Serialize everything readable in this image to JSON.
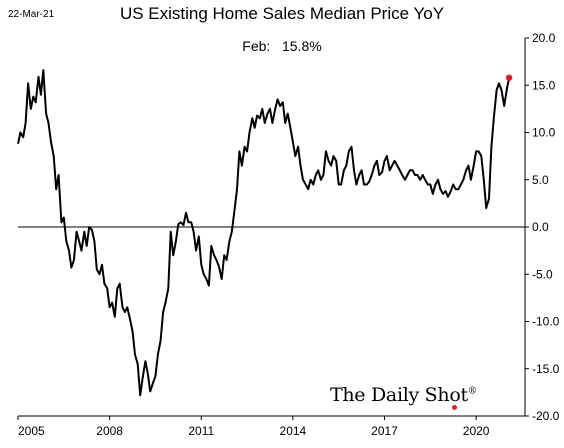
{
  "chart_data": {
    "type": "line",
    "date_stamp": "22-Mar-21",
    "title": "US Existing Home Sales Median Price YoY",
    "annotation": {
      "label": "Feb:",
      "value": "15.8%"
    },
    "watermark": "The Daily Shot",
    "watermark_mark": "®",
    "xlim": [
      2005.0,
      2021.6
    ],
    "ylim": [
      -20,
      20
    ],
    "x_ticks": [
      2005,
      2008,
      2011,
      2014,
      2017,
      2020
    ],
    "x_tick_labels": [
      "2005",
      "2008",
      "2011",
      "2014",
      "2017",
      "2020"
    ],
    "y_ticks": [
      20,
      15,
      10,
      5,
      0,
      -5,
      -10,
      -15,
      -20
    ],
    "y_tick_labels": [
      "20.0",
      "15.0",
      "10.0",
      "5.0",
      "0.0",
      "-5.0",
      "-10.0",
      "-15.0",
      "-20.0"
    ],
    "zero_line": 0,
    "grid": false,
    "colors": {
      "line": "#000000",
      "marker": "#e02020",
      "axis": "#000000"
    },
    "series": [
      {
        "values": [
          [
            2005.0,
            8.8
          ],
          [
            2005.08,
            10.0
          ],
          [
            2005.17,
            9.5
          ],
          [
            2005.25,
            11.0
          ],
          [
            2005.33,
            15.2
          ],
          [
            2005.42,
            12.5
          ],
          [
            2005.5,
            13.8
          ],
          [
            2005.58,
            13.2
          ],
          [
            2005.67,
            15.9
          ],
          [
            2005.75,
            14.0
          ],
          [
            2005.83,
            16.6
          ],
          [
            2005.92,
            12.0
          ],
          [
            2006.0,
            11.0
          ],
          [
            2006.08,
            9.0
          ],
          [
            2006.17,
            7.5
          ],
          [
            2006.25,
            4.0
          ],
          [
            2006.33,
            5.5
          ],
          [
            2006.42,
            0.5
          ],
          [
            2006.5,
            1.0
          ],
          [
            2006.58,
            -1.5
          ],
          [
            2006.67,
            -2.5
          ],
          [
            2006.75,
            -4.3
          ],
          [
            2006.83,
            -3.5
          ],
          [
            2006.92,
            -0.5
          ],
          [
            2007.0,
            -1.5
          ],
          [
            2007.08,
            -2.5
          ],
          [
            2007.17,
            -0.5
          ],
          [
            2007.25,
            -2.0
          ],
          [
            2007.33,
            0.0
          ],
          [
            2007.42,
            -0.3
          ],
          [
            2007.5,
            -1.5
          ],
          [
            2007.58,
            -4.5
          ],
          [
            2007.67,
            -5.0
          ],
          [
            2007.75,
            -4.0
          ],
          [
            2007.83,
            -6.0
          ],
          [
            2007.92,
            -6.5
          ],
          [
            2008.0,
            -8.5
          ],
          [
            2008.08,
            -8.0
          ],
          [
            2008.17,
            -9.5
          ],
          [
            2008.25,
            -6.5
          ],
          [
            2008.33,
            -6.0
          ],
          [
            2008.42,
            -8.5
          ],
          [
            2008.5,
            -9.0
          ],
          [
            2008.58,
            -8.5
          ],
          [
            2008.67,
            -9.8
          ],
          [
            2008.75,
            -11.0
          ],
          [
            2008.83,
            -13.5
          ],
          [
            2008.92,
            -14.5
          ],
          [
            2009.0,
            -17.8
          ],
          [
            2009.08,
            -16.0
          ],
          [
            2009.17,
            -14.2
          ],
          [
            2009.25,
            -15.5
          ],
          [
            2009.33,
            -17.4
          ],
          [
            2009.42,
            -16.5
          ],
          [
            2009.5,
            -15.8
          ],
          [
            2009.58,
            -13.5
          ],
          [
            2009.67,
            -12.0
          ],
          [
            2009.75,
            -9.0
          ],
          [
            2009.83,
            -8.0
          ],
          [
            2009.92,
            -6.5
          ],
          [
            2010.0,
            -0.5
          ],
          [
            2010.08,
            -3.0
          ],
          [
            2010.17,
            -1.5
          ],
          [
            2010.25,
            0.3
          ],
          [
            2010.33,
            0.5
          ],
          [
            2010.42,
            0.2
          ],
          [
            2010.5,
            1.5
          ],
          [
            2010.58,
            0.5
          ],
          [
            2010.67,
            0.5
          ],
          [
            2010.75,
            -0.5
          ],
          [
            2010.83,
            -2.5
          ],
          [
            2010.92,
            -1.0
          ],
          [
            2011.0,
            -4.0
          ],
          [
            2011.08,
            -5.0
          ],
          [
            2011.17,
            -5.5
          ],
          [
            2011.25,
            -6.2
          ],
          [
            2011.33,
            -2.0
          ],
          [
            2011.42,
            -3.0
          ],
          [
            2011.5,
            -3.5
          ],
          [
            2011.58,
            -4.2
          ],
          [
            2011.67,
            -5.5
          ],
          [
            2011.75,
            -3.0
          ],
          [
            2011.83,
            -3.5
          ],
          [
            2011.92,
            -1.5
          ],
          [
            2012.0,
            -0.5
          ],
          [
            2012.08,
            1.5
          ],
          [
            2012.17,
            4.0
          ],
          [
            2012.25,
            8.0
          ],
          [
            2012.33,
            6.5
          ],
          [
            2012.42,
            8.5
          ],
          [
            2012.5,
            8.0
          ],
          [
            2012.58,
            10.0
          ],
          [
            2012.67,
            11.5
          ],
          [
            2012.75,
            10.5
          ],
          [
            2012.83,
            11.8
          ],
          [
            2012.92,
            11.5
          ],
          [
            2013.0,
            12.5
          ],
          [
            2013.08,
            11.0
          ],
          [
            2013.17,
            12.0
          ],
          [
            2013.25,
            12.5
          ],
          [
            2013.33,
            11.0
          ],
          [
            2013.42,
            12.5
          ],
          [
            2013.5,
            13.5
          ],
          [
            2013.58,
            12.8
          ],
          [
            2013.67,
            13.2
          ],
          [
            2013.75,
            11.0
          ],
          [
            2013.83,
            12.0
          ],
          [
            2013.92,
            10.5
          ],
          [
            2014.0,
            9.0
          ],
          [
            2014.08,
            7.5
          ],
          [
            2014.17,
            8.5
          ],
          [
            2014.25,
            6.5
          ],
          [
            2014.33,
            5.0
          ],
          [
            2014.42,
            4.5
          ],
          [
            2014.5,
            4.0
          ],
          [
            2014.58,
            5.0
          ],
          [
            2014.67,
            4.5
          ],
          [
            2014.75,
            5.5
          ],
          [
            2014.83,
            6.0
          ],
          [
            2014.92,
            5.0
          ],
          [
            2015.0,
            5.5
          ],
          [
            2015.08,
            8.0
          ],
          [
            2015.17,
            7.0
          ],
          [
            2015.25,
            6.5
          ],
          [
            2015.33,
            7.5
          ],
          [
            2015.42,
            7.0
          ],
          [
            2015.5,
            4.5
          ],
          [
            2015.58,
            4.5
          ],
          [
            2015.67,
            6.0
          ],
          [
            2015.75,
            6.5
          ],
          [
            2015.83,
            8.0
          ],
          [
            2015.92,
            8.5
          ],
          [
            2016.0,
            6.0
          ],
          [
            2016.08,
            4.5
          ],
          [
            2016.17,
            5.5
          ],
          [
            2016.25,
            6.0
          ],
          [
            2016.33,
            4.5
          ],
          [
            2016.42,
            4.5
          ],
          [
            2016.5,
            4.8
          ],
          [
            2016.58,
            5.5
          ],
          [
            2016.67,
            6.5
          ],
          [
            2016.75,
            7.0
          ],
          [
            2016.83,
            5.5
          ],
          [
            2016.92,
            5.8
          ],
          [
            2017.0,
            7.0
          ],
          [
            2017.08,
            7.5
          ],
          [
            2017.17,
            6.0
          ],
          [
            2017.25,
            6.5
          ],
          [
            2017.33,
            7.0
          ],
          [
            2017.42,
            6.5
          ],
          [
            2017.5,
            6.0
          ],
          [
            2017.58,
            5.5
          ],
          [
            2017.67,
            5.0
          ],
          [
            2017.75,
            5.5
          ],
          [
            2017.83,
            6.0
          ],
          [
            2017.92,
            6.0
          ],
          [
            2018.0,
            5.5
          ],
          [
            2018.08,
            5.5
          ],
          [
            2018.17,
            5.0
          ],
          [
            2018.25,
            5.5
          ],
          [
            2018.33,
            5.0
          ],
          [
            2018.42,
            4.5
          ],
          [
            2018.5,
            4.5
          ],
          [
            2018.58,
            3.5
          ],
          [
            2018.67,
            4.5
          ],
          [
            2018.75,
            5.0
          ],
          [
            2018.83,
            4.0
          ],
          [
            2018.92,
            3.5
          ],
          [
            2019.0,
            3.8
          ],
          [
            2019.08,
            3.2
          ],
          [
            2019.17,
            3.8
          ],
          [
            2019.25,
            4.5
          ],
          [
            2019.33,
            4.0
          ],
          [
            2019.42,
            4.0
          ],
          [
            2019.5,
            4.5
          ],
          [
            2019.58,
            5.0
          ],
          [
            2019.67,
            6.0
          ],
          [
            2019.75,
            6.5
          ],
          [
            2019.83,
            5.0
          ],
          [
            2019.92,
            6.5
          ],
          [
            2020.0,
            8.0
          ],
          [
            2020.08,
            8.0
          ],
          [
            2020.17,
            7.5
          ],
          [
            2020.25,
            5.0
          ],
          [
            2020.33,
            2.0
          ],
          [
            2020.42,
            3.0
          ],
          [
            2020.5,
            8.5
          ],
          [
            2020.58,
            11.5
          ],
          [
            2020.67,
            14.5
          ],
          [
            2020.75,
            15.2
          ],
          [
            2020.83,
            14.5
          ],
          [
            2020.92,
            12.8
          ],
          [
            2021.0,
            14.5
          ],
          [
            2021.08,
            15.8
          ]
        ]
      }
    ]
  }
}
